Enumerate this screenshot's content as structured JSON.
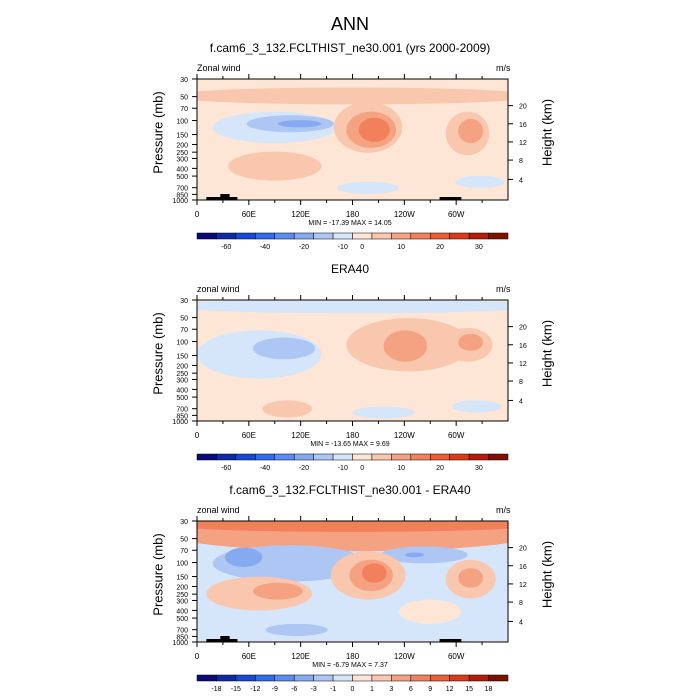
{
  "main_title": "ANN",
  "colors": {
    "full_palette": [
      "#0a0a7a",
      "#0c2aa6",
      "#1848d8",
      "#2f6cf2",
      "#5b8cf2",
      "#86aaf2",
      "#adc6f4",
      "#d6e6fa",
      "#fde6d6",
      "#f9c6ae",
      "#f5a282",
      "#f2805a",
      "#ee5c32",
      "#dc3a16",
      "#b41e08",
      "#801000"
    ]
  },
  "chart_data": [
    {
      "type": "heatmap",
      "title": "f.cam6_3_132.FCLTHIST_ne30.001 (yrs 2000-2009)",
      "left_label": "Zonal wind",
      "units": "m/s",
      "xlabel": "",
      "ylabel": "Pressure (mb)",
      "y2label": "Height (km)",
      "x_ticks": [
        "0",
        "60E",
        "120E",
        "180",
        "120W",
        "60W"
      ],
      "y_ticks": [
        "30",
        "50",
        "70",
        "100",
        "150",
        "200",
        "250",
        "300",
        "400",
        "500",
        "700",
        "850",
        "1000"
      ],
      "y2_ticks": [
        "20",
        "16",
        "12",
        "8",
        "4"
      ],
      "stats": "MIN = -17.39  MAX =  14.05",
      "colorbar_labels": [
        "-60",
        "-40",
        "-20",
        "-10",
        "0",
        "10",
        "20",
        "30"
      ],
      "min": -17.39,
      "max": 14.05
    },
    {
      "type": "heatmap",
      "title": "ERA40",
      "left_label": "zonal wind",
      "units": "m/s",
      "xlabel": "",
      "ylabel": "Pressure (mb)",
      "y2label": "Height (km)",
      "x_ticks": [
        "0",
        "60E",
        "120E",
        "180",
        "120W",
        "60W"
      ],
      "y_ticks": [
        "30",
        "50",
        "70",
        "100",
        "150",
        "200",
        "250",
        "300",
        "400",
        "500",
        "700",
        "850",
        "1000"
      ],
      "y2_ticks": [
        "20",
        "16",
        "12",
        "8",
        "4"
      ],
      "stats": "MIN = -13.65  MAX =  9.69",
      "colorbar_labels": [
        "-60",
        "-40",
        "-20",
        "-10",
        "0",
        "10",
        "20",
        "30"
      ],
      "min": -13.65,
      "max": 9.69
    },
    {
      "type": "heatmap",
      "title": "f.cam6_3_132.FCLTHIST_ne30.001 - ERA40",
      "left_label": "zonal wind",
      "units": "m/s",
      "xlabel": "",
      "ylabel": "Pressure (mb)",
      "y2label": "Height (km)",
      "x_ticks": [
        "0",
        "60E",
        "120E",
        "180",
        "120W",
        "60W"
      ],
      "y_ticks": [
        "30",
        "50",
        "70",
        "100",
        "150",
        "200",
        "250",
        "300",
        "400",
        "500",
        "700",
        "850",
        "1000"
      ],
      "y2_ticks": [
        "20",
        "16",
        "12",
        "8",
        "4"
      ],
      "stats": "MIN =  -6.79  MAX =   7.37",
      "colorbar_labels": [
        "-18",
        "-15",
        "-12",
        "-9",
        "-6",
        "-3",
        "-1",
        "0",
        "1",
        "3",
        "6",
        "9",
        "12",
        "15",
        "18"
      ],
      "min": -6.79,
      "max": 7.37
    }
  ]
}
